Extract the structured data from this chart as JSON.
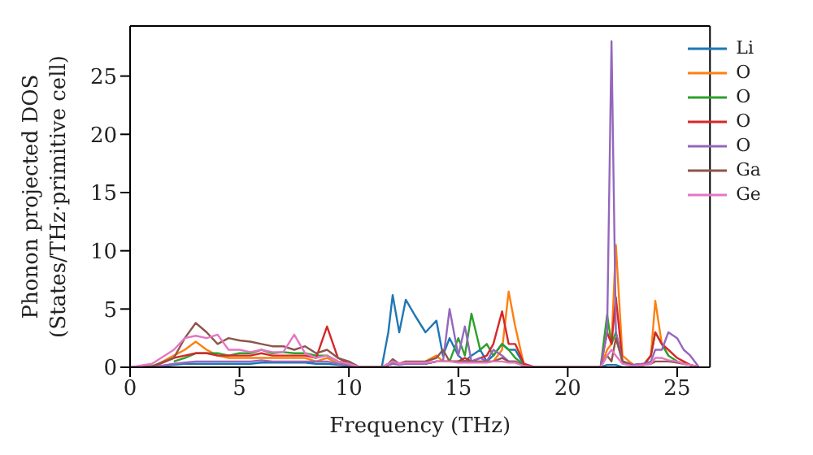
{
  "chart_data": {
    "type": "line",
    "xlabel": "Frequency (THz)",
    "ylabel": "Phonon projected DOS\n(States/THz·primitive cell)",
    "x": [
      0,
      1,
      2,
      2.5,
      3,
      3.5,
      4,
      4.5,
      5,
      5.5,
      6,
      6.5,
      7,
      7.5,
      8,
      8.5,
      9,
      9.5,
      10,
      10.5,
      11,
      11.5,
      11.8,
      12,
      12.3,
      12.6,
      13,
      13.5,
      14,
      14.3,
      14.6,
      15,
      15.3,
      15.6,
      16,
      16.3,
      16.6,
      17,
      17.3,
      17.6,
      18,
      18.5,
      19,
      20,
      21,
      21.5,
      21.8,
      22,
      22.2,
      22.5,
      23,
      23.5,
      23.8,
      24,
      24.3,
      24.6,
      25,
      25.3,
      25.6,
      26
    ],
    "series": [
      {
        "name": "Li",
        "color": "#1f77b4",
        "values": [
          0,
          0,
          0.2,
          0.3,
          0.3,
          0.3,
          0.3,
          0.3,
          0.3,
          0.3,
          0.4,
          0.4,
          0.4,
          0.4,
          0.4,
          0.3,
          0.3,
          0.2,
          0.1,
          0,
          0,
          0,
          3,
          6.2,
          3,
          5.8,
          4.5,
          3,
          4,
          1,
          2.5,
          1,
          0.5,
          1,
          1.5,
          0.5,
          1,
          2,
          1.5,
          1.5,
          0.2,
          0,
          0,
          0,
          0,
          0,
          0.2,
          0.2,
          0.2,
          0,
          0,
          null,
          null,
          null,
          null,
          null,
          null,
          null,
          null,
          null
        ]
      },
      {
        "name": "O",
        "color": "#ff7f0e",
        "values": [
          0,
          0,
          1.0,
          1.5,
          2.2,
          1.5,
          1,
          0.8,
          0.8,
          0.8,
          0.8,
          0.8,
          0.8,
          0.8,
          0.8,
          0.5,
          0.8,
          0.3,
          0.2,
          0,
          0,
          0,
          0.3,
          0.5,
          0.3,
          0.5,
          0.4,
          0.5,
          1,
          0.5,
          0.5,
          0.5,
          0.5,
          0.5,
          0.5,
          0.5,
          0.5,
          1.5,
          6.5,
          3.5,
          0.2,
          0,
          0,
          0,
          0,
          0,
          1.5,
          2,
          10.5,
          1,
          0.2,
          0.2,
          1,
          5.7,
          2,
          1,
          null,
          null,
          null,
          null
        ]
      },
      {
        "name": "O",
        "color": "#2ca02c",
        "values": [
          null,
          null,
          0.5,
          0.8,
          1.2,
          1.2,
          1.2,
          1,
          1.2,
          1.2,
          1.5,
          1.2,
          1.3,
          1.2,
          1.2,
          1,
          1,
          0.5,
          0.3,
          0,
          0,
          0,
          0.2,
          0.3,
          0.3,
          0.3,
          0.3,
          0.3,
          0.5,
          0.5,
          0.5,
          2.5,
          1,
          4.6,
          1.5,
          2,
          1,
          2,
          1.5,
          0.8,
          0.2,
          0,
          0,
          0,
          0,
          0,
          4.5,
          2,
          3,
          0.5,
          0.2,
          0.3,
          1,
          3,
          2,
          1,
          0.5,
          0.3,
          0.2,
          0
        ]
      },
      {
        "name": "O",
        "color": "#d62728",
        "values": [
          0,
          0,
          0.8,
          1,
          1.2,
          1.2,
          1,
          1,
          1,
          1,
          1.2,
          1,
          1,
          1,
          1,
          0.8,
          3.5,
          0.8,
          0.3,
          0,
          0,
          0,
          0.2,
          0.3,
          0.3,
          0.3,
          0.3,
          0.3,
          0.5,
          0.5,
          0.5,
          0.5,
          0.8,
          0.5,
          0.8,
          1,
          2,
          4.8,
          2,
          2,
          0.3,
          0,
          0,
          0,
          0,
          0,
          3,
          2,
          6,
          0.5,
          0.2,
          0.3,
          1,
          3,
          2,
          1.5,
          0.8,
          0.5,
          0.2,
          0
        ]
      },
      {
        "name": "O",
        "color": "#9467bd",
        "values": [
          0,
          0,
          0.3,
          0.4,
          0.5,
          0.5,
          0.5,
          0.5,
          0.5,
          0.5,
          0.6,
          0.5,
          0.5,
          0.5,
          0.5,
          0.5,
          0.5,
          0.3,
          0.2,
          0,
          0,
          0,
          0.2,
          0.3,
          0.2,
          0.3,
          0.3,
          0.3,
          0.5,
          0.5,
          5,
          1,
          3.5,
          0.5,
          0.8,
          0.5,
          1.5,
          1,
          0.5,
          0.5,
          0.1,
          0,
          0,
          0,
          0,
          0,
          3,
          28,
          3,
          0.5,
          0.2,
          0.3,
          0.5,
          1.5,
          1.5,
          3,
          2.5,
          1.5,
          1,
          0
        ]
      },
      {
        "name": "Ga",
        "color": "#8c564b",
        "values": [
          0,
          0.1,
          0.8,
          2.5,
          3.8,
          3,
          2,
          2.5,
          2.3,
          2.2,
          2,
          1.8,
          1.8,
          1.5,
          1.8,
          1.2,
          1.5,
          0.8,
          0.5,
          0,
          0,
          0,
          0.3,
          0.7,
          0.3,
          0.5,
          0.5,
          0.5,
          0.8,
          1.5,
          0.5,
          0.5,
          0.5,
          0.5,
          0.5,
          0.5,
          0.5,
          0.8,
          0.5,
          0.5,
          0.1,
          0,
          0,
          0,
          0,
          0,
          1,
          0.5,
          2.5,
          0.5,
          0.1,
          0.2,
          0.3,
          0.5,
          0.5,
          0.5,
          0.4,
          0.3,
          0.2,
          0
        ]
      },
      {
        "name": "Ge",
        "color": "#e377c2",
        "values": [
          0,
          0.3,
          1.5,
          2.5,
          2.7,
          2.5,
          2.8,
          1.5,
          1.5,
          1.3,
          1.5,
          1.3,
          1.3,
          2.8,
          1.2,
          0.8,
          1,
          0.5,
          0.3,
          0,
          0,
          0,
          0.3,
          0.5,
          0.3,
          0.4,
          0.4,
          0.4,
          0.5,
          0.5,
          0.5,
          0.4,
          0.4,
          0.4,
          0.4,
          0.4,
          0.5,
          0.5,
          0.4,
          0.4,
          0.1,
          0,
          0,
          0,
          0,
          0,
          1,
          1.5,
          1,
          0.3,
          0.1,
          0.2,
          0.3,
          0.8,
          0.8,
          0.6,
          0.5,
          0.3,
          0.2,
          0
        ]
      }
    ],
    "xlim": [
      0,
      26.5
    ],
    "xticks": [
      0,
      5,
      10,
      15,
      20,
      25
    ],
    "ylim": [
      0,
      29.3
    ],
    "yticks": [
      0,
      5,
      10,
      15,
      20,
      25
    ],
    "legend": "top right",
    "grid": false,
    "marker": "none",
    "line_style": "solid"
  }
}
